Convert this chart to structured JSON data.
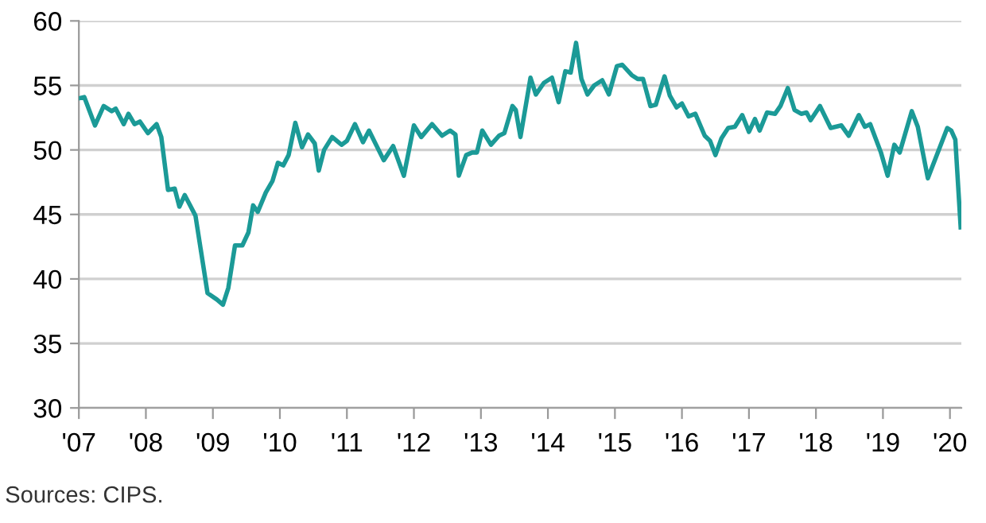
{
  "chart_data": {
    "type": "line",
    "x": [
      2007.0,
      2007.08,
      2007.24,
      2007.37,
      2007.49,
      2007.55,
      2007.67,
      2007.74,
      2007.83,
      2007.91,
      2008.03,
      2008.16,
      2008.23,
      2008.33,
      2008.43,
      2008.5,
      2008.58,
      2008.74,
      2008.92,
      2009.06,
      2009.15,
      2009.23,
      2009.33,
      2009.44,
      2009.53,
      2009.6,
      2009.67,
      2009.79,
      2009.89,
      2009.97,
      2010.05,
      2010.13,
      2010.23,
      2010.33,
      2010.42,
      2010.52,
      2010.58,
      2010.66,
      2010.78,
      2010.92,
      2011.0,
      2011.12,
      2011.24,
      2011.33,
      2011.55,
      2011.69,
      2011.85,
      2012.0,
      2012.11,
      2012.27,
      2012.42,
      2012.54,
      2012.62,
      2012.67,
      2012.78,
      2012.87,
      2012.94,
      2013.02,
      2013.15,
      2013.27,
      2013.35,
      2013.47,
      2013.52,
      2013.59,
      2013.74,
      2013.82,
      2013.94,
      2014.06,
      2014.16,
      2014.26,
      2014.34,
      2014.42,
      2014.5,
      2014.59,
      2014.69,
      2014.81,
      2014.91,
      2015.03,
      2015.11,
      2015.25,
      2015.34,
      2015.42,
      2015.53,
      2015.61,
      2015.74,
      2015.82,
      2015.92,
      2016.0,
      2016.1,
      2016.2,
      2016.34,
      2016.42,
      2016.5,
      2016.59,
      2016.69,
      2016.79,
      2016.9,
      2017.0,
      2017.09,
      2017.16,
      2017.27,
      2017.39,
      2017.47,
      2017.58,
      2017.68,
      2017.78,
      2017.86,
      2017.92,
      2018.06,
      2018.22,
      2018.38,
      2018.49,
      2018.64,
      2018.73,
      2018.81,
      2018.97,
      2019.07,
      2019.17,
      2019.25,
      2019.43,
      2019.52,
      2019.67,
      2019.96,
      2020.02,
      2020.08,
      2020.16
    ],
    "values": [
      54.0,
      54.1,
      51.9,
      53.4,
      53.0,
      53.2,
      52.0,
      52.8,
      52.0,
      52.2,
      51.3,
      52.0,
      51.0,
      46.9,
      47.0,
      45.6,
      46.5,
      44.9,
      38.9,
      38.4,
      38.0,
      39.3,
      42.6,
      42.6,
      43.6,
      45.7,
      45.2,
      46.7,
      47.6,
      49.0,
      48.8,
      49.6,
      52.1,
      50.2,
      51.2,
      50.5,
      48.4,
      50.0,
      51.0,
      50.4,
      50.7,
      52.0,
      50.6,
      51.5,
      49.2,
      50.3,
      48.0,
      51.9,
      51.0,
      52.0,
      51.1,
      51.5,
      51.2,
      48.0,
      49.6,
      49.8,
      49.8,
      51.5,
      50.4,
      51.1,
      51.3,
      53.4,
      53.1,
      51.0,
      55.6,
      54.3,
      55.2,
      55.6,
      53.7,
      56.1,
      56.0,
      58.3,
      55.5,
      54.3,
      55.0,
      55.4,
      54.3,
      56.5,
      56.6,
      55.8,
      55.5,
      55.5,
      53.4,
      53.5,
      55.7,
      54.2,
      53.3,
      53.6,
      52.6,
      52.8,
      51.1,
      50.7,
      49.6,
      50.9,
      51.7,
      51.8,
      52.7,
      51.4,
      52.4,
      51.5,
      52.9,
      52.8,
      53.4,
      54.8,
      53.1,
      52.8,
      52.9,
      52.3,
      53.4,
      51.7,
      51.9,
      51.1,
      52.7,
      51.8,
      52.0,
      49.8,
      48.0,
      50.4,
      49.8,
      53.0,
      51.8,
      47.8,
      51.7,
      51.5,
      50.8,
      44.0
    ],
    "color": "#1b9a97",
    "xlim": [
      2007,
      2020.17
    ],
    "xticks": [
      {
        "value": 2007,
        "label": "'07"
      },
      {
        "value": 2008,
        "label": "'08"
      },
      {
        "value": 2009,
        "label": "'09"
      },
      {
        "value": 2010,
        "label": "'10"
      },
      {
        "value": 2011,
        "label": "'11"
      },
      {
        "value": 2012,
        "label": "'12"
      },
      {
        "value": 2013,
        "label": "'13"
      },
      {
        "value": 2014,
        "label": "'14"
      },
      {
        "value": 2015,
        "label": "'15"
      },
      {
        "value": 2016,
        "label": "'16"
      },
      {
        "value": 2017,
        "label": "'17"
      },
      {
        "value": 2018,
        "label": "'18"
      },
      {
        "value": 2019,
        "label": "'19"
      },
      {
        "value": 2020,
        "label": "'20"
      }
    ],
    "ylim": [
      30,
      60
    ],
    "yticks": [
      30,
      35,
      40,
      45,
      50,
      55,
      60
    ],
    "grid": "y",
    "marker": "none",
    "line_style": "solid",
    "annotations": [
      "Sources: CIPS."
    ]
  }
}
